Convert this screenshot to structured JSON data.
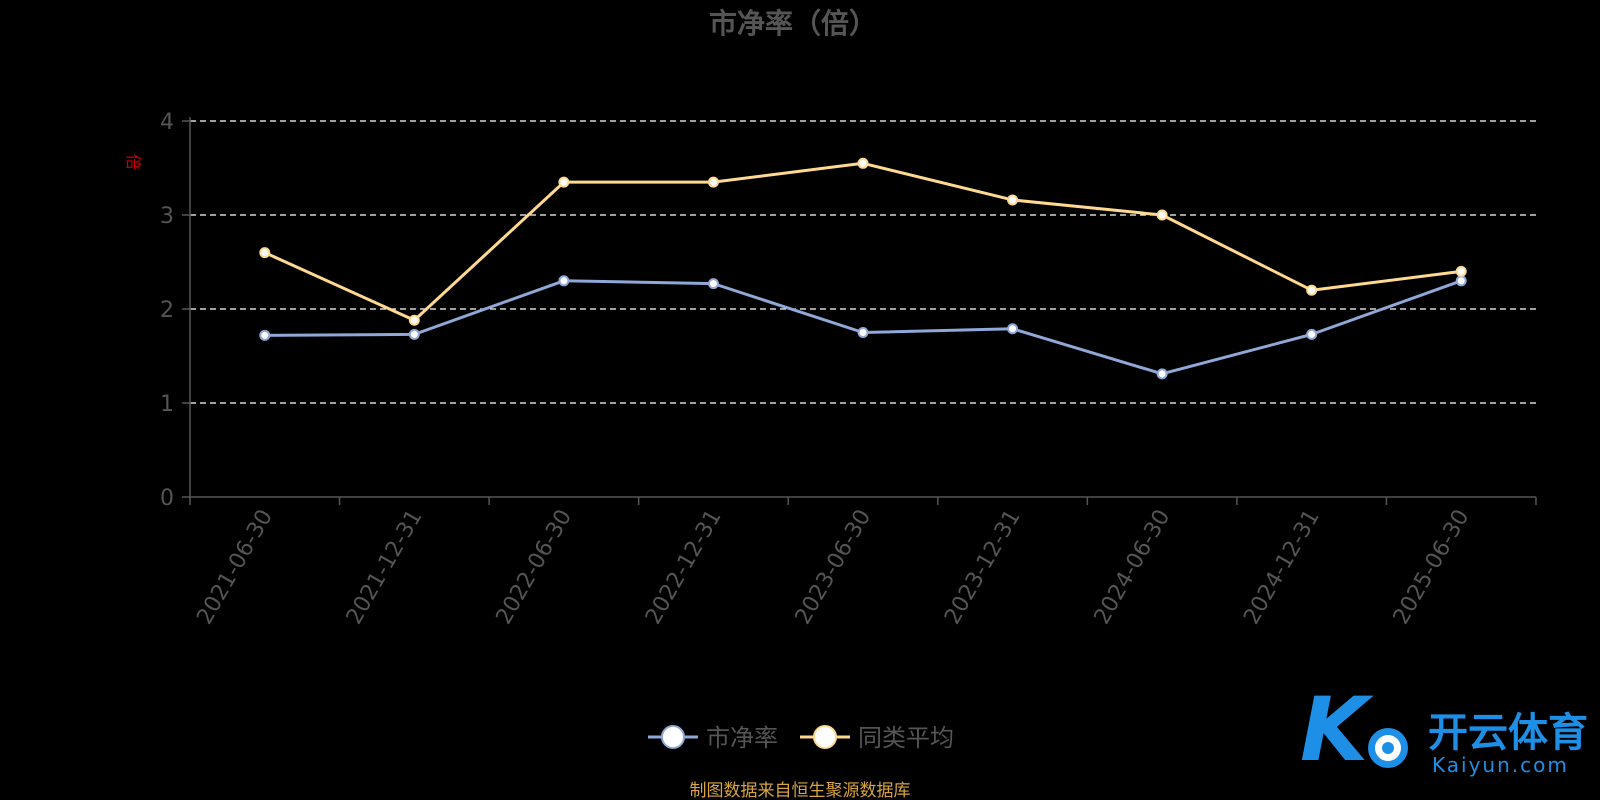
{
  "chart_data": {
    "type": "line",
    "title": "市净率（倍）",
    "ylabel": "倍",
    "ylim": [
      0,
      4
    ],
    "yticks": [
      "0",
      "1",
      "2",
      "3",
      "4"
    ],
    "grid": true,
    "legend_position": "bottom",
    "categories": [
      "2021-06-30",
      "2021-12-31",
      "2022-06-30",
      "2022-12-31",
      "2023-06-30",
      "2023-12-31",
      "2024-06-30",
      "2024-12-31",
      "2025-06-30"
    ],
    "series": [
      {
        "name": "市净率",
        "color": "#8fa8d8",
        "values": [
          1.72,
          1.73,
          2.3,
          2.27,
          1.75,
          1.79,
          1.31,
          1.73,
          2.3
        ]
      },
      {
        "name": "同类平均",
        "color": "#ffd990",
        "values": [
          2.6,
          1.88,
          3.35,
          3.35,
          3.55,
          3.16,
          3.0,
          2.2,
          2.4
        ]
      }
    ]
  },
  "footer": {
    "source": "制图数据来自恒生聚源数据库"
  },
  "watermark": {
    "brand": "开云体育",
    "domain": "Kaiyun.com"
  },
  "colors": {
    "background": "#000000",
    "axis": "#555555",
    "grid": "#ffffff",
    "unit": "#cc0000"
  }
}
